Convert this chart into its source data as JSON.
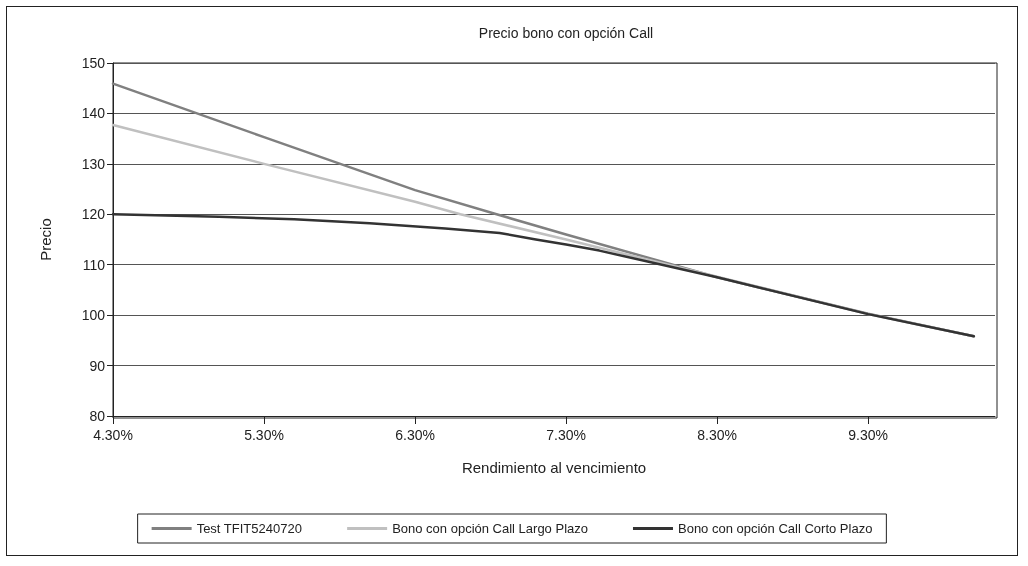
{
  "chart_data": {
    "type": "line",
    "title": "Precio bono con opción Call",
    "xlabel": "Rendimiento al vencimiento",
    "ylabel": "Precio",
    "xlim": [
      4.3,
      10.14
    ],
    "xticks": [
      {
        "value": 4.3,
        "label": "4.30%"
      },
      {
        "value": 5.3,
        "label": "5.30%"
      },
      {
        "value": 6.3,
        "label": "6.30%"
      },
      {
        "value": 7.3,
        "label": "7.30%"
      },
      {
        "value": 8.3,
        "label": "8.30%"
      },
      {
        "value": 9.3,
        "label": "9.30%"
      }
    ],
    "ylim": [
      80,
      150
    ],
    "yticks": [
      80,
      90,
      100,
      110,
      120,
      130,
      140,
      150
    ],
    "grid": "y",
    "legend": "bottom",
    "marker": "none",
    "line_style": "solid",
    "series": [
      {
        "name": "Test TFIT5240720",
        "color": "#808080",
        "x": [
          4.3,
          5.3,
          6.3,
          6.84,
          7.3,
          8.3,
          9.3,
          10.0
        ],
        "values": [
          145.9,
          135.3,
          124.8,
          120,
          116,
          107.5,
          100.3,
          95.8
        ]
      },
      {
        "name": "Bono con opción Call Largo Plazo",
        "color": "#c0c0c0",
        "x": [
          4.3,
          5.3,
          6.3,
          6.6,
          7.3,
          8.3,
          9.3,
          10.0
        ],
        "values": [
          137.7,
          130,
          122.5,
          120,
          115,
          107.6,
          100.2,
          95.8
        ]
      },
      {
        "name": "Bono con opción Call Corto Plazo",
        "color": "#333333",
        "x": [
          4.3,
          5.0,
          5.5,
          6.0,
          6.5,
          6.86,
          7.1,
          7.3,
          7.52,
          8.3,
          9.3,
          10.0
        ],
        "values": [
          120,
          119.5,
          119,
          118.2,
          117.2,
          116.3,
          115,
          114,
          112.8,
          107.5,
          100.2,
          95.8
        ]
      }
    ]
  }
}
